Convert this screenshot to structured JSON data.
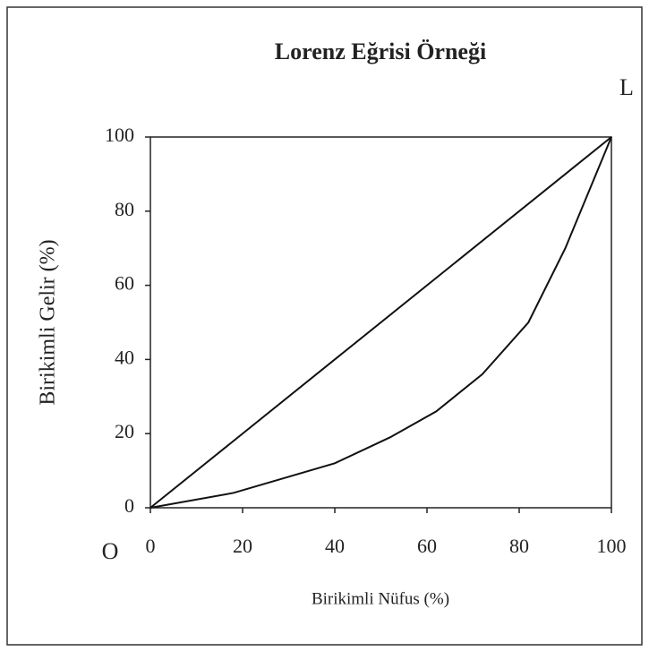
{
  "chart_data": {
    "type": "line",
    "title": "Lorenz Eğrisi Örneği",
    "x_label": "Birikimli Nüfus (%)",
    "y_label": "Birikimli Gelir (%)",
    "annotations": [
      "L",
      "O"
    ],
    "series": [
      {
        "color": "#111111",
        "x": [
          0,
          100
        ],
        "values": [
          0,
          100
        ]
      },
      {
        "color": "#111111",
        "x": [
          0,
          18,
          40,
          52,
          62,
          72,
          82,
          90,
          95,
          100
        ],
        "values": [
          0,
          4,
          12,
          19,
          26,
          36,
          50,
          70,
          85,
          100
        ]
      }
    ],
    "xlim": [
      0,
      100
    ],
    "ylim": [
      0,
      100
    ],
    "xticks": [
      0,
      20,
      40,
      60,
      80,
      100
    ],
    "yticks": [
      0,
      20,
      40,
      60,
      80,
      100
    ],
    "grid": false
  }
}
